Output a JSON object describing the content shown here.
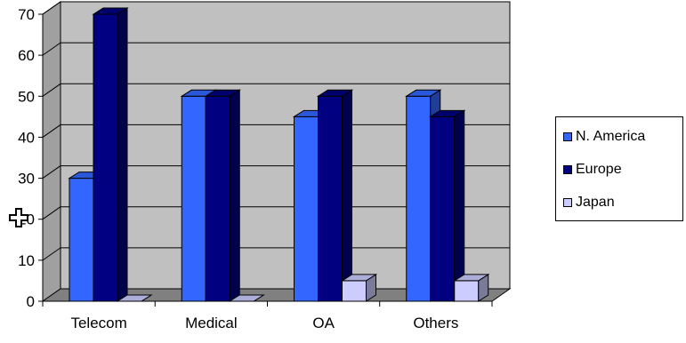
{
  "chart_data": {
    "type": "bar",
    "title": "",
    "xlabel": "",
    "ylabel": "",
    "categories": [
      "Telecom",
      "Medical",
      "OA",
      "Others"
    ],
    "series": [
      {
        "name": "N. America",
        "values": [
          30,
          50,
          45,
          50
        ],
        "color": "#3366ff"
      },
      {
        "name": "Europe",
        "values": [
          70,
          50,
          50,
          45
        ],
        "color": "#000080"
      },
      {
        "name": "Japan",
        "values": [
          0,
          0,
          5,
          5
        ],
        "color": "#ccccff"
      }
    ],
    "ylim": [
      0,
      70
    ],
    "yticks": [
      "0",
      "10",
      "20",
      "30",
      "40",
      "50",
      "60",
      "70"
    ],
    "grid": true,
    "legend": "right",
    "wall_color": "#c0c0c0",
    "floor_color": "#808080"
  },
  "cursor": {
    "icon": "move-cursor-icon"
  }
}
